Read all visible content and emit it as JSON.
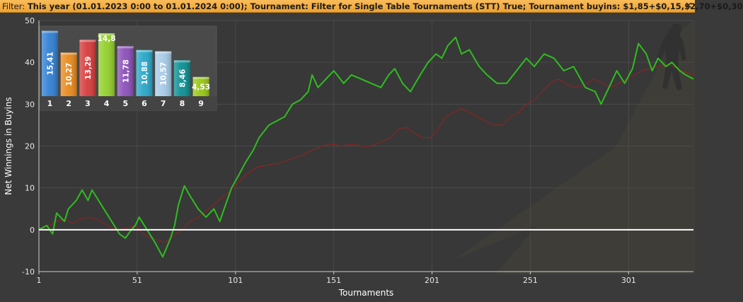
{
  "filter_bar": {
    "label": "Filter:",
    "text": "This year (01.01.2023 0:00 to 01.01.2024 0:00); Tournament: Filter for Single Table Tournaments (STT) True; Tournament buyins: $1,85+$0,15,$2,70+$0,30",
    "close_glyph": "✕"
  },
  "chart_data": [
    {
      "type": "line",
      "ylabel": "Net Winnings in Buyins",
      "xlabel": "Tournaments",
      "xlim": [
        1,
        334
      ],
      "ylim": [
        -10,
        50
      ],
      "x_ticks": [
        "1",
        "51",
        "101",
        "151",
        "201",
        "251",
        "301"
      ],
      "y_ticks": [
        "-10",
        "0",
        "10",
        "20",
        "30",
        "40",
        "50"
      ],
      "grid": true,
      "zero_line": 0,
      "series": [
        {
          "color": "#2ebd1f",
          "points": [
            [
              1,
              0
            ],
            [
              5,
              1
            ],
            [
              8,
              -1
            ],
            [
              10,
              4
            ],
            [
              14,
              2
            ],
            [
              16,
              5
            ],
            [
              20,
              7
            ],
            [
              23,
              9.5
            ],
            [
              26,
              7
            ],
            [
              28,
              9.5
            ],
            [
              30,
              8
            ],
            [
              34,
              5
            ],
            [
              38,
              2
            ],
            [
              42,
              -1
            ],
            [
              45,
              -2
            ],
            [
              48,
              0
            ],
            [
              50,
              1
            ],
            [
              52,
              3
            ],
            [
              56,
              0
            ],
            [
              60,
              -3
            ],
            [
              64,
              -6.5
            ],
            [
              68,
              -2
            ],
            [
              70,
              1
            ],
            [
              72,
              6
            ],
            [
              75,
              10.5
            ],
            [
              78,
              8
            ],
            [
              82,
              5
            ],
            [
              86,
              3
            ],
            [
              90,
              5
            ],
            [
              93,
              2
            ],
            [
              96,
              6
            ],
            [
              99,
              10
            ],
            [
              102,
              12.5
            ],
            [
              106,
              16
            ],
            [
              110,
              19
            ],
            [
              113,
              22
            ],
            [
              118,
              25
            ],
            [
              122,
              26
            ],
            [
              126,
              27
            ],
            [
              130,
              30
            ],
            [
              134,
              31
            ],
            [
              138,
              33
            ],
            [
              140,
              37
            ],
            [
              143,
              34
            ],
            [
              147,
              36
            ],
            [
              151,
              38
            ],
            [
              156,
              35
            ],
            [
              160,
              37
            ],
            [
              165,
              36
            ],
            [
              170,
              35
            ],
            [
              175,
              34
            ],
            [
              179,
              37
            ],
            [
              182,
              38.5
            ],
            [
              186,
              35
            ],
            [
              190,
              33
            ],
            [
              195,
              37
            ],
            [
              199,
              40
            ],
            [
              203,
              42
            ],
            [
              206,
              41
            ],
            [
              209,
              44
            ],
            [
              213,
              46
            ],
            [
              216,
              42
            ],
            [
              220,
              43
            ],
            [
              225,
              39
            ],
            [
              229,
              37
            ],
            [
              234,
              35
            ],
            [
              239,
              35
            ],
            [
              244,
              38
            ],
            [
              249,
              41
            ],
            [
              253,
              39
            ],
            [
              258,
              42
            ],
            [
              263,
              41
            ],
            [
              268,
              38
            ],
            [
              273,
              39
            ],
            [
              279,
              34
            ],
            [
              284,
              33
            ],
            [
              287,
              30
            ],
            [
              290,
              33
            ],
            [
              295,
              38
            ],
            [
              299,
              35
            ],
            [
              303,
              38.5
            ],
            [
              306,
              44.5
            ],
            [
              310,
              42
            ],
            [
              313,
              38
            ],
            [
              316,
              41
            ],
            [
              320,
              39
            ],
            [
              323,
              40
            ],
            [
              327,
              38
            ],
            [
              330,
              37
            ],
            [
              334,
              36
            ]
          ]
        },
        {
          "color": "#8a2424",
          "points": [
            [
              1,
              0
            ],
            [
              6,
              1
            ],
            [
              10,
              2
            ],
            [
              14,
              2.5
            ],
            [
              18,
              1.5
            ],
            [
              22,
              2.5
            ],
            [
              26,
              3
            ],
            [
              30,
              2.5
            ],
            [
              34,
              1.5
            ],
            [
              38,
              0.5
            ],
            [
              42,
              0
            ],
            [
              46,
              0.5
            ],
            [
              50,
              1
            ],
            [
              54,
              -1
            ],
            [
              58,
              -2
            ],
            [
              62,
              -2.5
            ],
            [
              65,
              -3
            ],
            [
              68,
              -2
            ],
            [
              71,
              -1
            ],
            [
              74,
              0
            ],
            [
              78,
              2
            ],
            [
              82,
              3
            ],
            [
              86,
              4.5
            ],
            [
              90,
              6
            ],
            [
              95,
              8
            ],
            [
              100,
              10
            ],
            [
              106,
              13
            ],
            [
              112,
              15
            ],
            [
              118,
              15.5
            ],
            [
              124,
              16
            ],
            [
              130,
              17
            ],
            [
              136,
              18
            ],
            [
              140,
              19
            ],
            [
              145,
              20
            ],
            [
              150,
              20.5
            ],
            [
              155,
              20
            ],
            [
              160,
              20.5
            ],
            [
              165,
              20
            ],
            [
              170,
              20
            ],
            [
              175,
              21
            ],
            [
              180,
              22
            ],
            [
              184,
              24
            ],
            [
              188,
              24.5
            ],
            [
              192,
              23
            ],
            [
              196,
              22
            ],
            [
              200,
              22
            ],
            [
              204,
              24
            ],
            [
              208,
              27
            ],
            [
              212,
              28
            ],
            [
              216,
              29
            ],
            [
              220,
              28
            ],
            [
              224,
              27
            ],
            [
              228,
              26
            ],
            [
              232,
              25
            ],
            [
              237,
              25
            ],
            [
              241,
              27
            ],
            [
              245,
              28
            ],
            [
              249,
              30
            ],
            [
              253,
              31
            ],
            [
              257,
              33
            ],
            [
              261,
              35
            ],
            [
              265,
              36
            ],
            [
              269,
              35
            ],
            [
              273,
              34
            ],
            [
              278,
              34.5
            ],
            [
              283,
              36
            ],
            [
              288,
              35
            ],
            [
              292,
              34
            ],
            [
              296,
              35
            ],
            [
              300,
              36
            ],
            [
              304,
              37
            ],
            [
              308,
              38
            ],
            [
              312,
              38.5
            ],
            [
              316,
              39
            ],
            [
              320,
              39.5
            ],
            [
              324,
              39
            ],
            [
              328,
              38
            ],
            [
              334,
              37
            ]
          ]
        }
      ]
    },
    {
      "type": "bar",
      "categories": [
        "1",
        "2",
        "3",
        "4",
        "5",
        "6",
        "7",
        "8",
        "9"
      ],
      "values": [
        15.41,
        10.27,
        13.29,
        14.8,
        11.78,
        10.88,
        10.57,
        8.46,
        4.53
      ],
      "value_labels": [
        "15,41",
        "10,27",
        "13,29",
        "14,8",
        "11,78",
        "10,88",
        "10,57",
        "8,46",
        "4,53"
      ],
      "colors": [
        "#2f7fd4",
        "#e9891c",
        "#d63a3a",
        "#93cf2a",
        "#8a4fb8",
        "#28a7c9",
        "#a7cbe8",
        "#0a8f92",
        "#99c614"
      ],
      "label_colors": [
        "#ffffff",
        "#ffffff",
        "#ffffff",
        "#333333",
        "#ffffff",
        "#ffffff",
        "#333333",
        "#ffffff",
        "#ffffff"
      ],
      "ylim": [
        0,
        16
      ]
    }
  ]
}
